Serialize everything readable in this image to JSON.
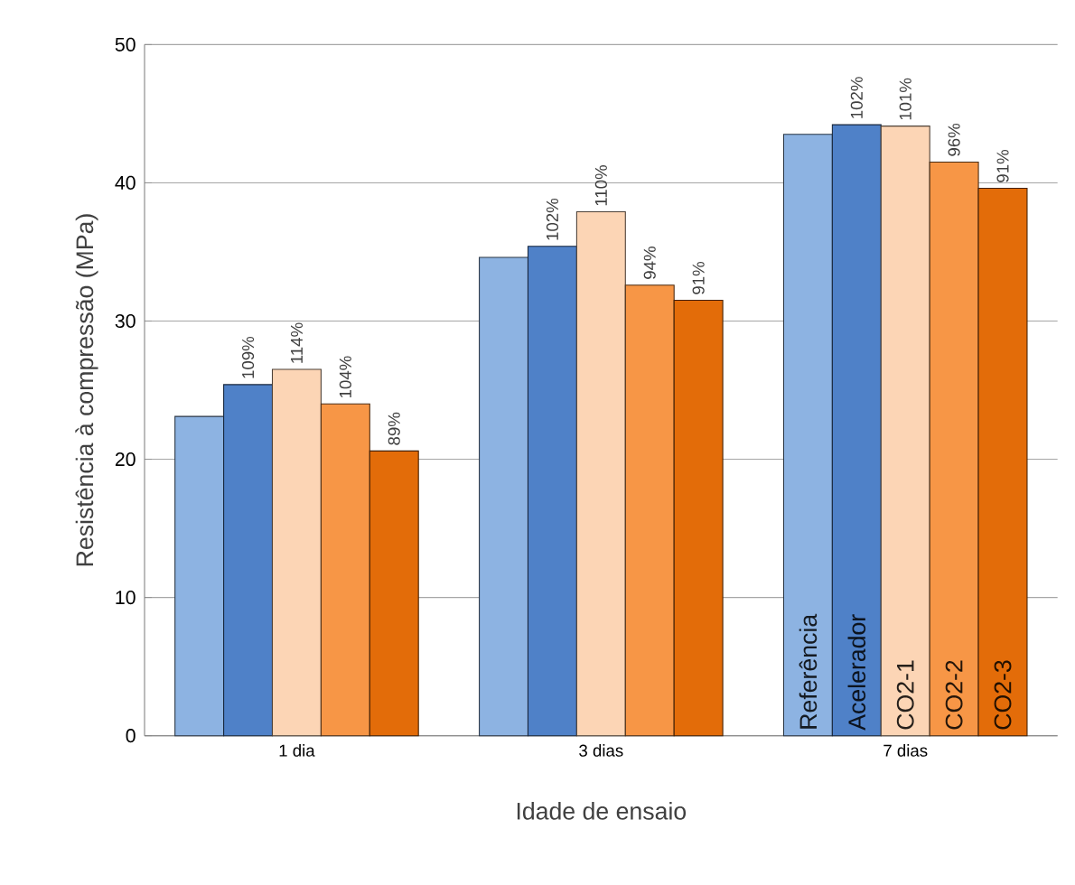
{
  "chart_data": {
    "type": "bar",
    "xlabel": "Idade de ensaio",
    "ylabel": "Resistência à compressão (MPa)",
    "categories": [
      "1 dia",
      "3 dias",
      "7 dias"
    ],
    "series": [
      {
        "name": "Referência",
        "color": "#8db3e2",
        "values": [
          23.1,
          34.6,
          43.5
        ]
      },
      {
        "name": "Acelerador",
        "color": "#4f81c8",
        "values": [
          25.4,
          35.4,
          44.2
        ]
      },
      {
        "name": "CO2-1",
        "color": "#fcd5b5",
        "values": [
          26.5,
          37.9,
          44.1
        ]
      },
      {
        "name": "CO2-2",
        "color": "#f79646",
        "values": [
          24.0,
          32.6,
          41.5
        ]
      },
      {
        "name": "CO2-3",
        "color": "#e36c09",
        "values": [
          20.6,
          31.5,
          39.6
        ]
      }
    ],
    "annotations": [
      "109%",
      "114%",
      "104%",
      "89%",
      "102%",
      "110%",
      "94%",
      "91%",
      "102%",
      "101%",
      "96%",
      "91%"
    ],
    "ylim": [
      0,
      50
    ],
    "yticks": [
      0,
      10,
      20,
      30,
      40,
      50
    ],
    "grid": "y",
    "legend": false
  }
}
